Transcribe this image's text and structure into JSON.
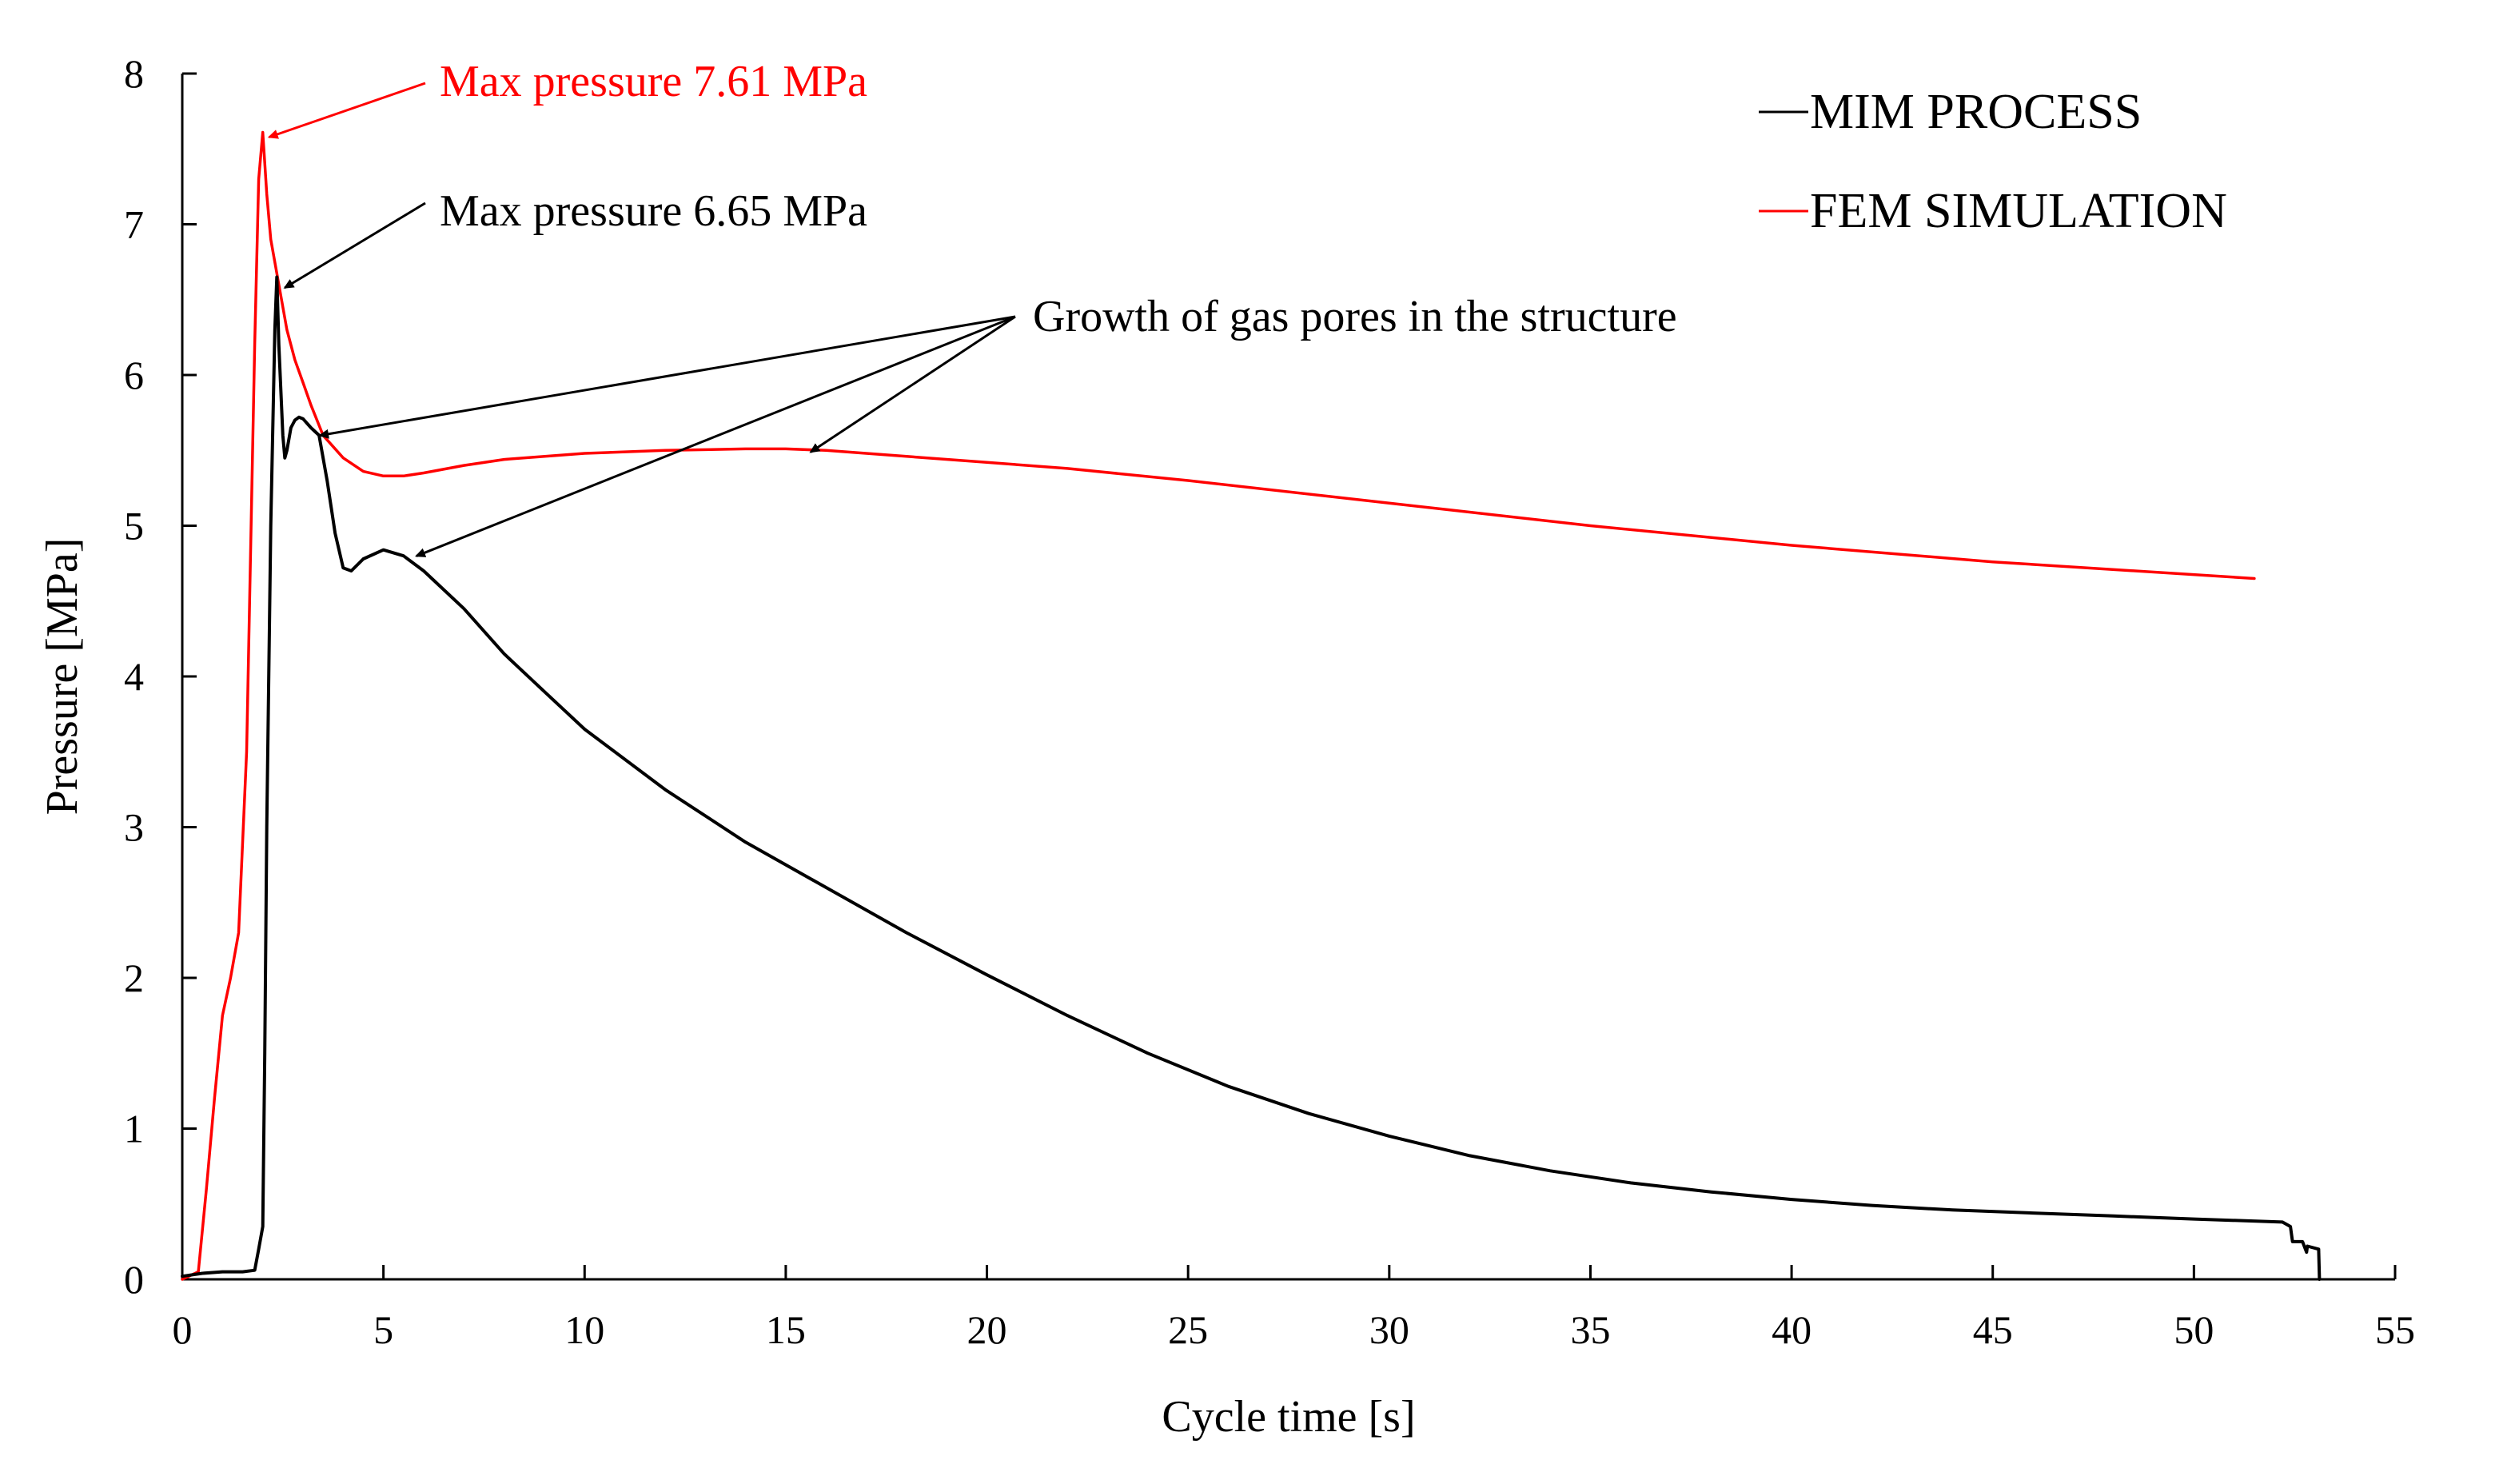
{
  "colors": {
    "mim": "#000000",
    "fem": "#ff0000",
    "axis": "#000000",
    "background": "#ffffff"
  },
  "chart_data": {
    "type": "line",
    "xlabel": "Cycle time [s]",
    "ylabel": "Pressure  [MPa]",
    "xlim": [
      0,
      55
    ],
    "ylim": [
      0,
      8
    ],
    "xticks": [
      0,
      5,
      10,
      15,
      20,
      25,
      30,
      35,
      40,
      45,
      50,
      55
    ],
    "yticks": [
      0,
      1,
      2,
      3,
      4,
      5,
      6,
      7,
      8
    ],
    "grid": false,
    "legend_position": "top-right",
    "series": [
      {
        "name": "MIM PROCESS",
        "color": "#000000",
        "x": [
          0,
          0.5,
          1,
          1.5,
          1.8,
          1.9,
          2.0,
          2.05,
          2.1,
          2.2,
          2.3,
          2.35,
          2.4,
          2.5,
          2.55,
          2.6,
          2.7,
          2.8,
          2.9,
          3.0,
          3.2,
          3.4,
          3.6,
          3.8,
          4.0,
          4.2,
          4.5,
          5.0,
          5.5,
          6.0,
          7.0,
          8.0,
          9.0,
          10,
          12,
          14,
          16,
          18,
          20,
          22,
          24,
          26,
          28,
          30,
          32,
          34,
          36,
          38,
          40,
          42,
          44,
          46,
          48,
          50,
          52.2,
          52.4,
          52.45,
          52.7,
          52.8,
          52.82,
          53.1,
          53.12
        ],
        "y": [
          0.02,
          0.04,
          0.05,
          0.05,
          0.06,
          0.2,
          0.35,
          1.5,
          3.0,
          5.0,
          6.3,
          6.65,
          6.2,
          5.6,
          5.45,
          5.5,
          5.65,
          5.7,
          5.72,
          5.71,
          5.65,
          5.6,
          5.3,
          4.95,
          4.72,
          4.7,
          4.78,
          4.84,
          4.8,
          4.7,
          4.45,
          4.15,
          3.9,
          3.65,
          3.25,
          2.9,
          2.6,
          2.3,
          2.02,
          1.75,
          1.5,
          1.28,
          1.1,
          0.95,
          0.82,
          0.72,
          0.64,
          0.58,
          0.53,
          0.49,
          0.46,
          0.44,
          0.42,
          0.4,
          0.38,
          0.35,
          0.25,
          0.25,
          0.18,
          0.22,
          0.2,
          0.0
        ]
      },
      {
        "name": "FEM SIMULATION",
        "color": "#ff0000",
        "x": [
          0,
          0.4,
          0.6,
          0.8,
          1.0,
          1.2,
          1.4,
          1.6,
          1.8,
          1.9,
          2.0,
          2.1,
          2.2,
          2.4,
          2.6,
          2.8,
          3.0,
          3.2,
          3.5,
          4.0,
          4.5,
          5.0,
          5.5,
          6.0,
          7.0,
          8.0,
          10,
          12,
          14,
          15,
          16,
          18,
          20,
          22,
          25,
          30,
          35,
          40,
          45,
          51.5
        ],
        "y": [
          0,
          0.05,
          0.6,
          1.2,
          1.75,
          2.0,
          2.3,
          3.5,
          6.2,
          7.3,
          7.61,
          7.2,
          6.9,
          6.6,
          6.3,
          6.1,
          5.95,
          5.8,
          5.6,
          5.45,
          5.36,
          5.33,
          5.33,
          5.35,
          5.4,
          5.44,
          5.48,
          5.5,
          5.51,
          5.51,
          5.5,
          5.46,
          5.42,
          5.38,
          5.3,
          5.15,
          5.0,
          4.87,
          4.76,
          4.65
        ]
      }
    ],
    "annotations": [
      {
        "text": "Max pressure 7.61 MPa",
        "color": "#ff0000",
        "target_x": 2.0,
        "target_y": 7.61
      },
      {
        "text": "Max pressure 6.65 MPa",
        "color": "#000000",
        "target_x": 2.35,
        "target_y": 6.6
      },
      {
        "text": "Growth of gas pores in the structure",
        "color": "#000000",
        "targets": [
          [
            3.3,
            5.62
          ],
          [
            5.7,
            4.82
          ],
          [
            15.5,
            5.51
          ]
        ]
      }
    ]
  }
}
